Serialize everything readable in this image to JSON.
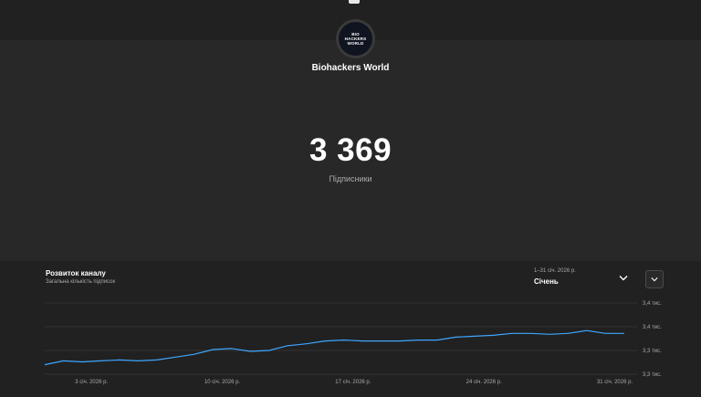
{
  "channel": {
    "name": "Biohackers World",
    "avatar_text": [
      "BIO",
      "HACKERS",
      "WORLD"
    ]
  },
  "stats": {
    "subscribers": "3 369",
    "subscribers_label": "Підписники"
  },
  "card": {
    "title": "Розвиток каналу",
    "subtitle": "Загальна кількість підписок",
    "range": "1–31 січ. 2026 р.",
    "period": "Січень"
  },
  "colors": {
    "background": "#282828",
    "card": "#212121",
    "line": "#3ea6ff"
  },
  "icons": {
    "dropdown": "chevron-down-icon",
    "expand": "chevron-down-icon"
  },
  "chart_data": {
    "type": "line",
    "xlabel": "",
    "ylabel": "",
    "x_ticks": [
      {
        "day": 3,
        "label": "3 січ. 2026 р."
      },
      {
        "day": 10,
        "label": "10 січ. 2026 р."
      },
      {
        "day": 17,
        "label": "17 січ. 2026 р."
      },
      {
        "day": 24,
        "label": "24 січ. 2026 р."
      },
      {
        "day": 31,
        "label": "31 січ. 2026 р."
      }
    ],
    "y_ticks": [
      {
        "value": 3300,
        "label": "3,3 тис."
      },
      {
        "value": 3325,
        "label": "3,3 тис."
      },
      {
        "value": 3350,
        "label": "3,4 тис."
      },
      {
        "value": 3375,
        "label": "3,4 тис."
      }
    ],
    "ylim": [
      3300,
      3375
    ],
    "x_range": [
      0.5,
      32
    ],
    "grid": true,
    "series": [
      {
        "days": [
          0.5,
          1.5,
          2.5,
          3.5,
          4.5,
          5.5,
          6.5,
          7.5,
          8.5,
          9.5,
          10.5,
          11.5,
          12.5,
          13.5,
          14.5,
          15.5,
          16.5,
          17.5,
          18.5,
          19.5,
          20.5,
          21.5,
          22.5,
          23.5,
          24.5,
          25.5,
          26.5,
          27.5,
          28.5,
          29.5,
          30.5,
          31.5
        ],
        "values": [
          3310,
          3314,
          3313,
          3314,
          3315,
          3314,
          3315,
          3318,
          3321,
          3326,
          3327,
          3324,
          3325,
          3330,
          3332,
          3335,
          3336,
          3335,
          3335,
          3335,
          3336,
          3336,
          3339,
          3340,
          3341,
          3343,
          3343,
          3342,
          3343,
          3346,
          3343,
          3343
        ]
      }
    ]
  }
}
